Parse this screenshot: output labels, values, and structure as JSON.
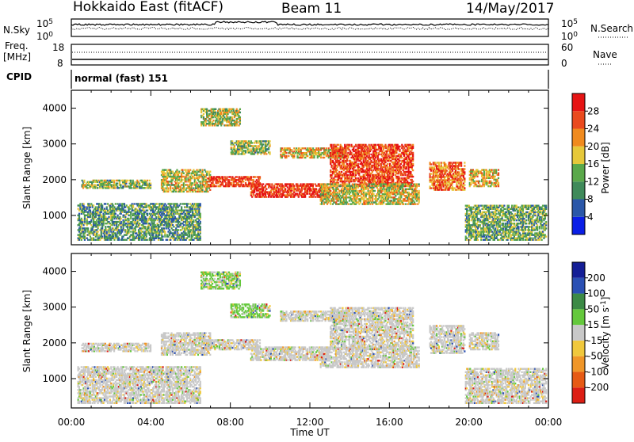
{
  "header": {
    "radar": "Hokkaido East (fitACF)",
    "beam": "Beam 11",
    "date": "14/May/2017"
  },
  "top_panels": {
    "nsky_label": "N.Sky",
    "nsky_ticks": [
      "10^5",
      "10^0"
    ],
    "nsearch_label": "N.Search",
    "nsearch_ticks": [
      "10^5",
      "10^0"
    ],
    "freq_label": "Freq.",
    "freq_unit": "[MHz]",
    "freq_ticks": [
      "18",
      "8"
    ],
    "nave_label": "Nave",
    "nave_ticks": [
      "60",
      "0"
    ],
    "cpid_label": "CPID",
    "cpid_value": "normal (fast) 151"
  },
  "chart_data": [
    {
      "type": "heatmap",
      "name": "power",
      "ylabel": "Slant Range [km]",
      "ylim": [
        180,
        4500
      ],
      "yticks": [
        1000,
        2000,
        3000,
        4000
      ],
      "xlim_hours": [
        0,
        24
      ],
      "xticks": [
        "00:00",
        "04:00",
        "08:00",
        "12:00",
        "16:00",
        "20:00",
        "00:00"
      ],
      "colorbar": {
        "label": "Power [dB]",
        "ticks": [
          4,
          8,
          12,
          16,
          20,
          24,
          28
        ],
        "range": [
          0,
          32
        ],
        "colors": [
          "#0a1ee6",
          "#2a57a8",
          "#3f8a5a",
          "#5aa84a",
          "#e6c83a",
          "#f08a1e",
          "#ea4a1e",
          "#e61414"
        ]
      }
    },
    {
      "type": "heatmap",
      "name": "velocity",
      "ylabel": "Slant Range [km]",
      "xlabel": "Time UT",
      "ylim": [
        180,
        4500
      ],
      "yticks": [
        1000,
        2000,
        3000,
        4000
      ],
      "xlim_hours": [
        0,
        24
      ],
      "xticks": [
        "00:00",
        "04:00",
        "08:00",
        "12:00",
        "16:00",
        "20:00",
        "00:00"
      ],
      "colorbar": {
        "label": "Velocity [m s⁻¹]",
        "ticks": [
          "200",
          "100",
          "50",
          "15",
          "-15",
          "-50",
          "-100",
          "-200"
        ],
        "colors": [
          "#141e96",
          "#2a50b4",
          "#3c8a46",
          "#64c83c",
          "#c8c8c8",
          "#f0c83c",
          "#f09628",
          "#e65a14",
          "#dc1e14"
        ]
      }
    }
  ],
  "echo_regions": [
    {
      "t0": 0.3,
      "t1": 6.5,
      "r0": 300,
      "r1": 1350,
      "pw": 0.35,
      "v": 0
    },
    {
      "t0": 0.5,
      "t1": 4.0,
      "r0": 1750,
      "r1": 2000,
      "pw": 0.45,
      "v": 0
    },
    {
      "t0": 4.5,
      "t1": 7.0,
      "r0": 1650,
      "r1": 2300,
      "pw": 0.55,
      "v": 0
    },
    {
      "t0": 6.8,
      "t1": 9.5,
      "r0": 1800,
      "r1": 2100,
      "pw": 0.85,
      "v": 0
    },
    {
      "t0": 9.0,
      "t1": 13.0,
      "r0": 1500,
      "r1": 1900,
      "pw": 0.9,
      "v": 0
    },
    {
      "t0": 10.5,
      "t1": 13.8,
      "r0": 2600,
      "r1": 2900,
      "pw": 0.6,
      "v": 0
    },
    {
      "t0": 6.5,
      "t1": 8.5,
      "r0": 3500,
      "r1": 4000,
      "pw": 0.5,
      "v": 1
    },
    {
      "t0": 13.0,
      "t1": 17.2,
      "r0": 1800,
      "r1": 3000,
      "pw": 0.85,
      "v": 0
    },
    {
      "t0": 18.0,
      "t1": 19.8,
      "r0": 1700,
      "r1": 2500,
      "pw": 0.75,
      "v": 0
    },
    {
      "t0": 19.8,
      "t1": 23.9,
      "r0": 300,
      "r1": 1300,
      "pw": 0.4,
      "v": 0
    },
    {
      "t0": 20.0,
      "t1": 21.5,
      "r0": 1800,
      "r1": 2300,
      "pw": 0.6,
      "v": 0
    },
    {
      "t0": 12.5,
      "t1": 17.5,
      "r0": 1300,
      "r1": 1900,
      "pw": 0.55,
      "v": 0
    },
    {
      "t0": 8.0,
      "t1": 10.0,
      "r0": 2700,
      "r1": 3100,
      "pw": 0.45,
      "v": 1
    }
  ]
}
